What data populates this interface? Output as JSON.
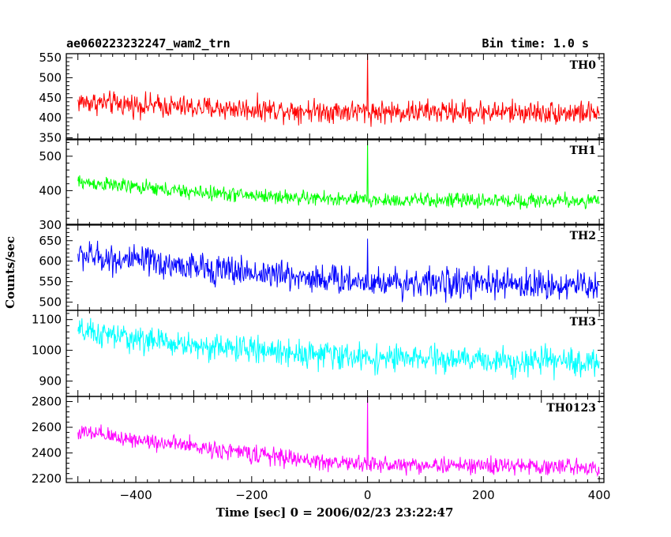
{
  "chart_data": {
    "type": "line",
    "title_left": "ae060223232247_wam2_trn",
    "title_right": "Bin time: 1.0 s",
    "xlabel": "Time [sec] 0 = 2006/02/23 23:22:47",
    "ylabel": "Counts/sec",
    "xlim": [
      -520,
      408
    ],
    "x_ticks": [
      -400,
      -200,
      0,
      200,
      400
    ],
    "x_tick_labels": [
      "−400",
      "−200",
      "0",
      "200",
      "400"
    ],
    "grid": false,
    "panels": [
      {
        "name": "TH0",
        "color": "#ff0000",
        "ylim": [
          345,
          560
        ],
        "y_ticks": [
          350,
          400,
          450,
          500,
          550
        ],
        "y_tick_labels": [
          "350",
          "400",
          "450",
          "500",
          "550"
        ],
        "x_range": [
          -500,
          400
        ],
        "baseline": [
          [
            -500,
            440
          ],
          [
            -300,
            425
          ],
          [
            0,
            415
          ],
          [
            200,
            415
          ],
          [
            400,
            412
          ]
        ],
        "noise_amplitude": 30,
        "spike": {
          "x": 0,
          "y": 560
        }
      },
      {
        "name": "TH1",
        "color": "#00ff00",
        "ylim": [
          300,
          550
        ],
        "y_ticks": [
          300,
          400,
          500
        ],
        "y_tick_labels": [
          "300",
          "400",
          "500"
        ],
        "x_range": [
          -500,
          400
        ],
        "baseline": [
          [
            -500,
            425
          ],
          [
            -300,
            395
          ],
          [
            -100,
            378
          ],
          [
            0,
            372
          ],
          [
            400,
            370
          ]
        ],
        "noise_amplitude": 22,
        "spike": {
          "x": 0,
          "y": 550
        }
      },
      {
        "name": "TH2",
        "color": "#0000ff",
        "ylim": [
          480,
          690
        ],
        "y_ticks": [
          500,
          550,
          600,
          650
        ],
        "y_tick_labels": [
          "500",
          "550",
          "600",
          "650"
        ],
        "x_range": [
          -500,
          400
        ],
        "baseline": [
          [
            -500,
            615
          ],
          [
            -300,
            585
          ],
          [
            -100,
            560
          ],
          [
            0,
            550
          ],
          [
            400,
            540
          ]
        ],
        "noise_amplitude": 38,
        "spike": {
          "x": 0,
          "y": 655
        }
      },
      {
        "name": "TH3",
        "color": "#00ffff",
        "ylim": [
          850,
          1130
        ],
        "y_ticks": [
          900,
          1000,
          1100
        ],
        "y_tick_labels": [
          "900",
          "1000",
          "1100"
        ],
        "x_range": [
          -500,
          400
        ],
        "baseline": [
          [
            -500,
            1060
          ],
          [
            -300,
            1015
          ],
          [
            -100,
            990
          ],
          [
            0,
            975
          ],
          [
            400,
            960
          ]
        ],
        "noise_amplitude": 45,
        "spike": null
      },
      {
        "name": "TH0123",
        "color": "#ff00ff",
        "ylim": [
          2170,
          2840
        ],
        "y_ticks": [
          2200,
          2400,
          2600,
          2800
        ],
        "y_tick_labels": [
          "2200",
          "2400",
          "2600",
          "2800"
        ],
        "x_range": [
          -500,
          400
        ],
        "baseline": [
          [
            -500,
            2560
          ],
          [
            -300,
            2450
          ],
          [
            -100,
            2340
          ],
          [
            0,
            2310
          ],
          [
            400,
            2290
          ]
        ],
        "noise_amplitude": 70,
        "spike": {
          "x": 0,
          "y": 2840
        }
      }
    ]
  }
}
